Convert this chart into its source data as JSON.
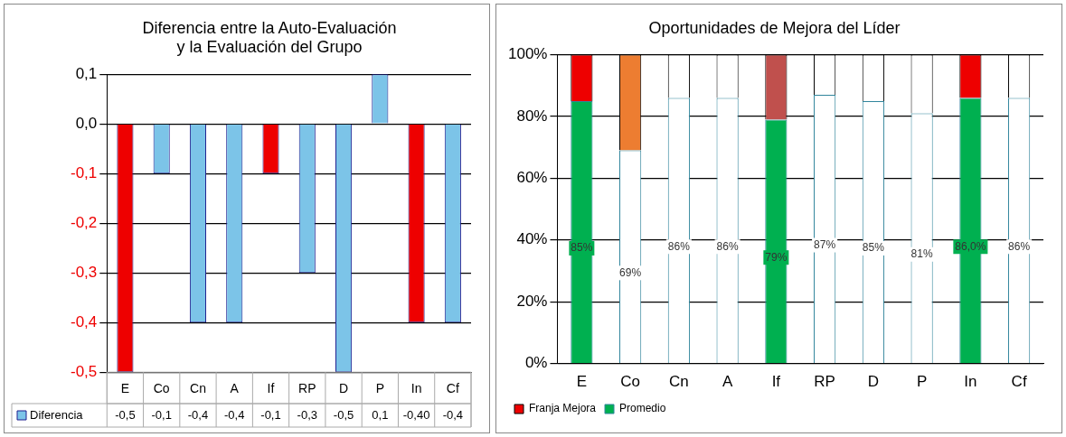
{
  "chart_data": [
    {
      "type": "bar",
      "title": "Diferencia entre la Auto-Evaluación\ny la Evaluación del Grupo",
      "categories": [
        "E",
        "Co",
        "Cn",
        "A",
        "If",
        "RP",
        "D",
        "P",
        "In",
        "Cf"
      ],
      "series": [
        {
          "name": "Diferencia",
          "color": "#7cc4e8",
          "colors": [
            "#ee0000",
            "#7cc4e8",
            "#7cc4e8",
            "#7cc4e8",
            "#ee0000",
            "#7cc4e8",
            "#7cc4e8",
            "#7cc4e8",
            "#ee0000",
            "#7cc4e8"
          ],
          "values": [
            -0.5,
            -0.1,
            -0.4,
            -0.4,
            -0.1,
            -0.3,
            -0.5,
            0.1,
            -0.4,
            -0.4
          ],
          "value_labels": [
            "-0,5",
            "-0,1",
            "-0,4",
            "-0,4",
            "-0,1",
            "-0,3",
            "-0,5",
            "0,1",
            "-0,40",
            "-0,4"
          ]
        }
      ],
      "ylim": [
        -0.5,
        0.1
      ],
      "yticks": [
        {
          "value": 0.1,
          "label": "0,1"
        },
        {
          "value": 0,
          "label": "0,0"
        },
        {
          "value": -0.1,
          "label": "-0,1"
        },
        {
          "value": -0.2,
          "label": "-0,2"
        },
        {
          "value": -0.3,
          "label": "-0,3"
        },
        {
          "value": -0.4,
          "label": "-0,4"
        },
        {
          "value": -0.5,
          "label": "-0,5"
        }
      ],
      "grid": "y",
      "legend": "bottom left"
    },
    {
      "type": "bar",
      "title": "Oportunidades de Mejora del Líder",
      "categories": [
        "E",
        "Co",
        "Cn",
        "A",
        "If",
        "RP",
        "D",
        "P",
        "In",
        "Cf"
      ],
      "stacked": true,
      "series": [
        {
          "name": "Promedio",
          "colors": [
            "#00b050",
            "#ffffff",
            "#ffffff",
            "#ffffff",
            "#00b050",
            "#ffffff",
            "#ffffff",
            "#ffffff",
            "#00b050",
            "#ffffff"
          ],
          "values": [
            85,
            69,
            86,
            86,
            79,
            87,
            85,
            81,
            86,
            86
          ],
          "value_labels": [
            "85%",
            "69%",
            "86%",
            "86%",
            "79%",
            "87%",
            "85%",
            "81%",
            "86,0%",
            "86%"
          ]
        },
        {
          "name": "Franja Mejora",
          "colors": [
            "#ee0000",
            "#ed7d31",
            "#ffffff",
            "#ffffff",
            "#c0504d",
            "#ffffff",
            "#ffffff",
            "#ffffff",
            "#ee0000",
            "#ffffff"
          ],
          "values": [
            15,
            31,
            14,
            14,
            21,
            13,
            15,
            19,
            14,
            14
          ]
        }
      ],
      "ylim": [
        0,
        100
      ],
      "yticks": [
        {
          "value": 0,
          "label": "0%"
        },
        {
          "value": 20,
          "label": "20%"
        },
        {
          "value": 40,
          "label": "40%"
        },
        {
          "value": 60,
          "label": "60%"
        },
        {
          "value": 80,
          "label": "80%"
        },
        {
          "value": 100,
          "label": "100%"
        }
      ],
      "grid": "y",
      "legend": "bottom left"
    }
  ]
}
